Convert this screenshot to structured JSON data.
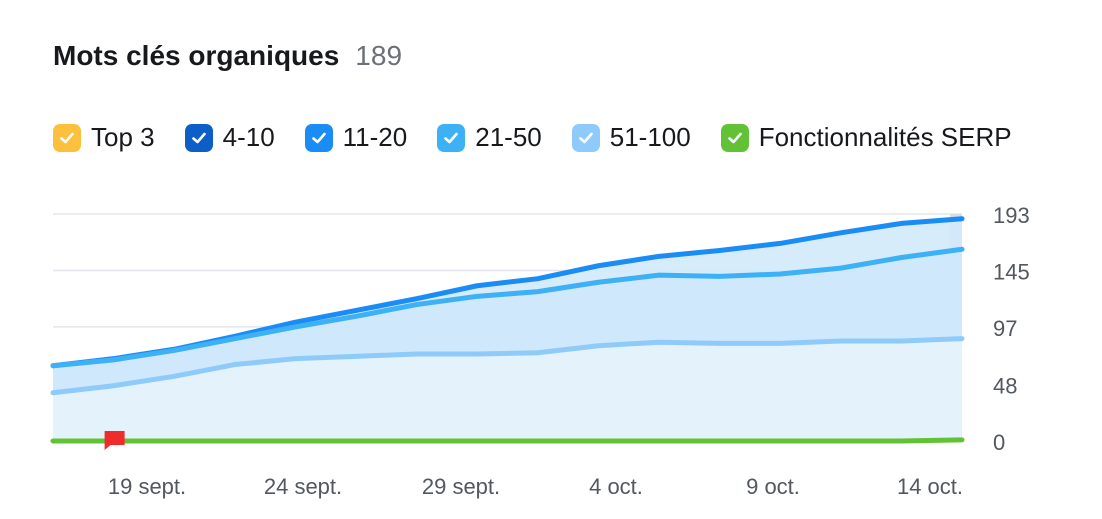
{
  "header": {
    "title": "Mots clés organiques",
    "count": "189"
  },
  "legend": [
    {
      "label": "Top 3",
      "color": "#fcc03d",
      "checked": true
    },
    {
      "label": "4-10",
      "color": "#0b5fc6",
      "checked": true
    },
    {
      "label": "11-20",
      "color": "#1a8cf5",
      "checked": true
    },
    {
      "label": "21-50",
      "color": "#3cb1f6",
      "checked": true
    },
    {
      "label": "51-100",
      "color": "#8ecbfa",
      "checked": true
    },
    {
      "label": "Fonctionnalités SERP",
      "color": "#61c235",
      "checked": true
    }
  ],
  "chart_data": {
    "type": "area",
    "x_tick_labels": [
      "19 sept.",
      "24 sept.",
      "29 sept.",
      "4 oct.",
      "9 oct.",
      "14 oct."
    ],
    "y_ticks": [
      0,
      48,
      97,
      145,
      193
    ],
    "ylim": [
      0,
      193
    ],
    "x": [
      "15 sept.",
      "17 sept.",
      "19 sept.",
      "21 sept.",
      "23 sept.",
      "25 sept.",
      "27 sept.",
      "29 sept.",
      "1 oct.",
      "3 oct.",
      "5 oct.",
      "7 oct.",
      "9 oct.",
      "11 oct.",
      "13 oct.",
      "14 oct."
    ],
    "series": [
      {
        "values": [
          64,
          70,
          78,
          89,
          101,
          111,
          121,
          132,
          138,
          149,
          157,
          162,
          168,
          177,
          185,
          189
        ],
        "color": "#1a8cf5"
      },
      {
        "values": [
          64,
          69,
          77,
          87,
          97,
          106,
          116,
          123,
          127,
          135,
          141,
          140,
          142,
          147,
          156,
          163
        ],
        "color": "#3cb1f6"
      },
      {
        "values": [
          41,
          47,
          55,
          65,
          70,
          72,
          74,
          74,
          75,
          81,
          84,
          83,
          83,
          85,
          85,
          87
        ],
        "color": "#8ecbfa"
      },
      {
        "values": [
          0,
          0,
          0,
          0,
          0,
          0,
          0,
          0,
          0,
          0,
          0,
          0,
          0,
          0,
          0,
          1
        ],
        "color": "#61c235"
      }
    ],
    "annotations": [
      {
        "type": "flag",
        "x": "17 sept.",
        "color": "#ef2b2b"
      }
    ],
    "grid": true
  }
}
